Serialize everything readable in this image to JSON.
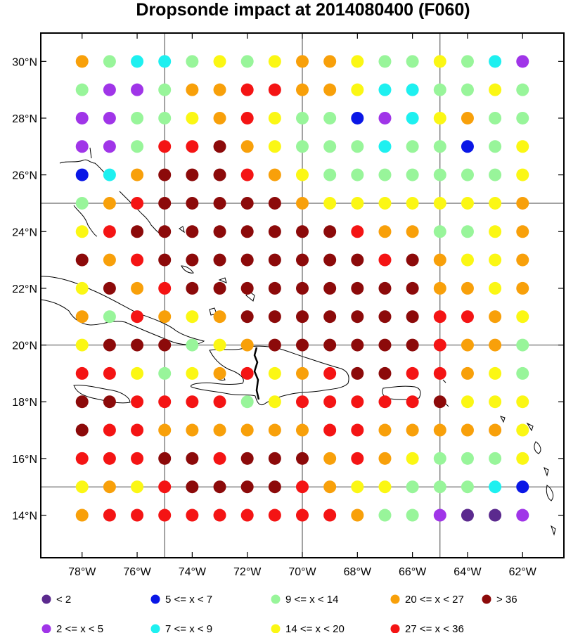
{
  "title": "Dropsonde impact at 2014080400 (F060)",
  "lat_ticks": [
    "14°N",
    "16°N",
    "18°N",
    "20°N",
    "22°N",
    "24°N",
    "26°N",
    "28°N",
    "30°N"
  ],
  "lon_ticks": [
    "78°W",
    "76°W",
    "74°W",
    "72°W",
    "70°W",
    "68°W",
    "66°W",
    "64°W",
    "62°W"
  ],
  "colors": {
    "c0": "#5b2a8e",
    "c1": "#a035e8",
    "c2": "#0a17e6",
    "c3": "#1ef0f0",
    "c4": "#98f59a",
    "c5": "#fbf714",
    "c6": "#f8a00a",
    "c7": "#f41414",
    "c8": "#8c0a0a"
  },
  "legend": [
    {
      "key": "c0",
      "label": "<  2"
    },
    {
      "key": "c2",
      "label": "5 <= x <  7"
    },
    {
      "key": "c4",
      "label": "9 <= x < 14"
    },
    {
      "key": "c6",
      "label": "20 <= x < 27"
    },
    {
      "key": "c8",
      "label": "> 36"
    },
    {
      "key": "c1",
      "label": "2 <= x <  5"
    },
    {
      "key": "c3",
      "label": "7 <= x <  9"
    },
    {
      "key": "c5",
      "label": "14 <= x < 20"
    },
    {
      "key": "c7",
      "label": "27 <= x < 36"
    }
  ],
  "chart_data": {
    "type": "scatter",
    "x_lon": [
      -78,
      -77,
      -76,
      -75,
      -74,
      -73,
      -72,
      -71,
      -70,
      -69,
      -68,
      -67,
      -66,
      -65,
      -64,
      -63,
      -62
    ],
    "y_lat": [
      30,
      29,
      28,
      27,
      26,
      25,
      24,
      23,
      22,
      21,
      20,
      19,
      18,
      17,
      16,
      15,
      14
    ],
    "grid": [
      [
        6,
        4,
        3,
        3,
        4,
        5,
        4,
        5,
        6,
        6,
        5,
        4,
        4,
        5,
        4,
        3,
        1
      ],
      [
        4,
        1,
        1,
        4,
        6,
        6,
        7,
        7,
        6,
        6,
        5,
        3,
        3,
        4,
        4,
        5,
        4
      ],
      [
        1,
        1,
        4,
        4,
        5,
        6,
        7,
        5,
        4,
        4,
        2,
        1,
        3,
        5,
        6,
        4,
        4
      ],
      [
        1,
        1,
        4,
        7,
        7,
        8,
        6,
        5,
        4,
        4,
        4,
        3,
        4,
        4,
        2,
        4,
        5
      ],
      [
        2,
        3,
        6,
        8,
        8,
        8,
        7,
        6,
        5,
        4,
        4,
        4,
        4,
        4,
        4,
        4,
        5
      ],
      [
        4,
        6,
        7,
        8,
        8,
        8,
        8,
        8,
        6,
        5,
        5,
        5,
        5,
        5,
        5,
        5,
        6
      ],
      [
        5,
        7,
        8,
        8,
        8,
        8,
        8,
        8,
        8,
        8,
        7,
        6,
        6,
        4,
        4,
        5,
        6
      ],
      [
        8,
        6,
        7,
        8,
        8,
        8,
        8,
        8,
        8,
        8,
        8,
        7,
        8,
        6,
        5,
        5,
        6
      ],
      [
        5,
        8,
        6,
        7,
        8,
        8,
        8,
        8,
        8,
        8,
        8,
        8,
        8,
        6,
        6,
        5,
        6
      ],
      [
        6,
        4,
        7,
        6,
        5,
        6,
        8,
        8,
        8,
        8,
        8,
        8,
        8,
        7,
        7,
        6,
        5
      ],
      [
        5,
        8,
        8,
        8,
        4,
        5,
        6,
        8,
        8,
        8,
        8,
        8,
        8,
        7,
        6,
        6,
        4
      ],
      [
        7,
        7,
        5,
        4,
        5,
        6,
        7,
        5,
        6,
        7,
        8,
        8,
        7,
        7,
        6,
        5,
        4
      ],
      [
        8,
        8,
        7,
        7,
        7,
        7,
        4,
        5,
        7,
        7,
        7,
        7,
        7,
        8,
        5,
        5,
        5
      ],
      [
        8,
        7,
        7,
        6,
        6,
        6,
        6,
        6,
        6,
        7,
        7,
        6,
        6,
        6,
        6,
        6,
        5
      ],
      [
        7,
        7,
        7,
        8,
        8,
        7,
        8,
        8,
        8,
        6,
        7,
        6,
        5,
        4,
        4,
        4,
        5
      ],
      [
        5,
        6,
        5,
        7,
        8,
        8,
        8,
        8,
        7,
        6,
        5,
        5,
        4,
        4,
        4,
        3,
        2
      ],
      [
        6,
        7,
        7,
        7,
        7,
        7,
        7,
        7,
        7,
        7,
        6,
        4,
        4,
        1,
        0,
        0,
        1
      ]
    ],
    "xlim": [
      -79.5,
      -60.5
    ],
    "ylim": [
      12.5,
      31
    ],
    "grid_lines": true,
    "grid_lon": [
      -75,
      -70,
      -65
    ],
    "grid_lat": [
      15,
      20,
      25
    ],
    "legend_position": "bottom"
  }
}
